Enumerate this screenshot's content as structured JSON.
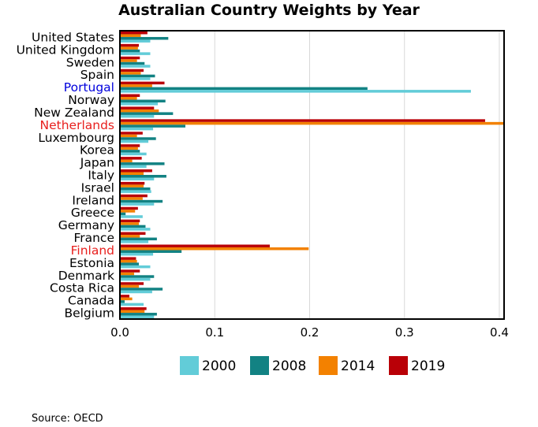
{
  "chart_data": {
    "type": "bar",
    "orientation": "horizontal",
    "title": "Australian Country Weights by Year",
    "source": "Source: OECD",
    "xlim": [
      0,
      0.405
    ],
    "x_ticks": [
      0.0,
      0.1,
      0.2,
      0.3,
      0.4
    ],
    "x_tick_labels": [
      "0.0",
      "0.1",
      "0.2",
      "0.3",
      "0.4"
    ],
    "grid": "vertical",
    "legend_position": "bottom",
    "highlight_colors": {
      "Portugal": "#0000dd",
      "Netherlands": "#e8201e",
      "Finland": "#e8201e"
    },
    "categories": [
      "United States",
      "United Kingdom",
      "Sweden",
      "Spain",
      "Portugal",
      "Norway",
      "New Zealand",
      "Netherlands",
      "Luxembourg",
      "Korea",
      "Japan",
      "Italy",
      "Israel",
      "Ireland",
      "Greece",
      "Germany",
      "France",
      "Finland",
      "Estonia",
      "Denmark",
      "Costa Rica",
      "Canada",
      "Belgium"
    ],
    "series": [
      {
        "name": "2000",
        "color": "#62ccd8",
        "values": [
          0.032,
          0.032,
          0.032,
          0.032,
          0.37,
          0.04,
          0.036,
          0.035,
          0.03,
          0.028,
          0.028,
          0.036,
          0.033,
          0.036,
          0.024,
          0.032,
          0.03,
          0.035,
          0.032,
          0.032,
          0.034,
          0.025,
          0.036
        ]
      },
      {
        "name": "2008",
        "color": "#128283",
        "values": [
          0.051,
          0.021,
          0.026,
          0.037,
          0.261,
          0.048,
          0.056,
          0.069,
          0.038,
          0.021,
          0.047,
          0.049,
          0.032,
          0.045,
          0.006,
          0.027,
          0.039,
          0.065,
          0.02,
          0.036,
          0.045,
          0.005,
          0.039
        ]
      },
      {
        "name": "2014",
        "color": "#f38100",
        "values": [
          0.022,
          0.019,
          0.018,
          0.022,
          0.034,
          0.018,
          0.041,
          0.405,
          0.018,
          0.019,
          0.013,
          0.025,
          0.025,
          0.024,
          0.016,
          0.02,
          0.021,
          0.199,
          0.018,
          0.015,
          0.02,
          0.013,
          0.026
        ]
      },
      {
        "name": "2019",
        "color": "#b90007",
        "values": [
          0.029,
          0.02,
          0.021,
          0.025,
          0.047,
          0.021,
          0.036,
          0.385,
          0.024,
          0.021,
          0.023,
          0.034,
          0.026,
          0.029,
          0.019,
          0.021,
          0.027,
          0.158,
          0.017,
          0.021,
          0.025,
          0.01,
          0.028
        ]
      }
    ]
  }
}
